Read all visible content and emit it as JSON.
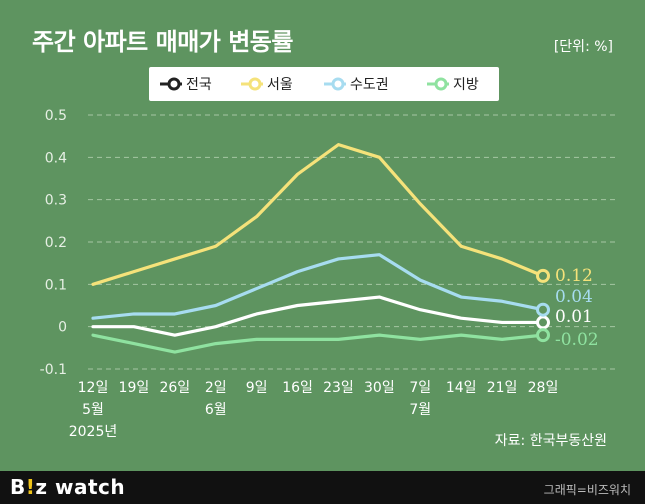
{
  "header": {
    "title": "주간 아파트 매매가 변동률",
    "unit": "[단위: %]"
  },
  "source": "자료: 한국부동산원",
  "footer": {
    "brand_b": "B",
    "brand_i": "!",
    "brand_z": "z",
    "brand_rest": " watch",
    "credit": "그래픽=비즈워치"
  },
  "chart_data": {
    "type": "line",
    "title": "주간 아파트 매매가 변동률",
    "xlabel": "",
    "ylabel": "",
    "ylim": [
      -0.1,
      0.5
    ],
    "yticks": [
      -0.1,
      0,
      0.1,
      0.2,
      0.3,
      0.4,
      0.5
    ],
    "ytick_labels": [
      "-0.1",
      "0",
      "0.1",
      "0.2",
      "0.3",
      "0.4",
      "0.5"
    ],
    "grid": true,
    "legend_position": "top-center",
    "categories": [
      "12일",
      "19일",
      "26일",
      "2일",
      "9일",
      "16일",
      "23일",
      "30일",
      "7일",
      "14일",
      "21일",
      "28일"
    ],
    "month_labels": [
      {
        "index": 0,
        "text": "5월"
      },
      {
        "index": 3,
        "text": "6월"
      },
      {
        "index": 8,
        "text": "7월"
      }
    ],
    "year_label": {
      "index": 0,
      "text": "2025년"
    },
    "series": [
      {
        "name": "전국",
        "color": "#ffffff",
        "values": [
          0,
          0,
          -0.02,
          0,
          0.03,
          0.05,
          0.06,
          0.07,
          0.04,
          0.02,
          0.01,
          0.01
        ],
        "end_label": "0.01"
      },
      {
        "name": "서울",
        "color": "#f5e27a",
        "values": [
          0.1,
          0.13,
          0.16,
          0.19,
          0.26,
          0.36,
          0.43,
          0.4,
          0.29,
          0.19,
          0.16,
          0.12
        ],
        "end_label": "0.12"
      },
      {
        "name": "수도권",
        "color": "#a7dcf0",
        "values": [
          0.02,
          0.03,
          0.03,
          0.05,
          0.09,
          0.13,
          0.16,
          0.17,
          0.11,
          0.07,
          0.06,
          0.04
        ],
        "end_label": "0.04"
      },
      {
        "name": "지방",
        "color": "#8fe2a0",
        "values": [
          -0.02,
          -0.04,
          -0.06,
          -0.04,
          -0.03,
          -0.03,
          -0.03,
          -0.02,
          -0.03,
          -0.02,
          -0.03,
          -0.02
        ],
        "end_label": "-0.02"
      }
    ]
  }
}
